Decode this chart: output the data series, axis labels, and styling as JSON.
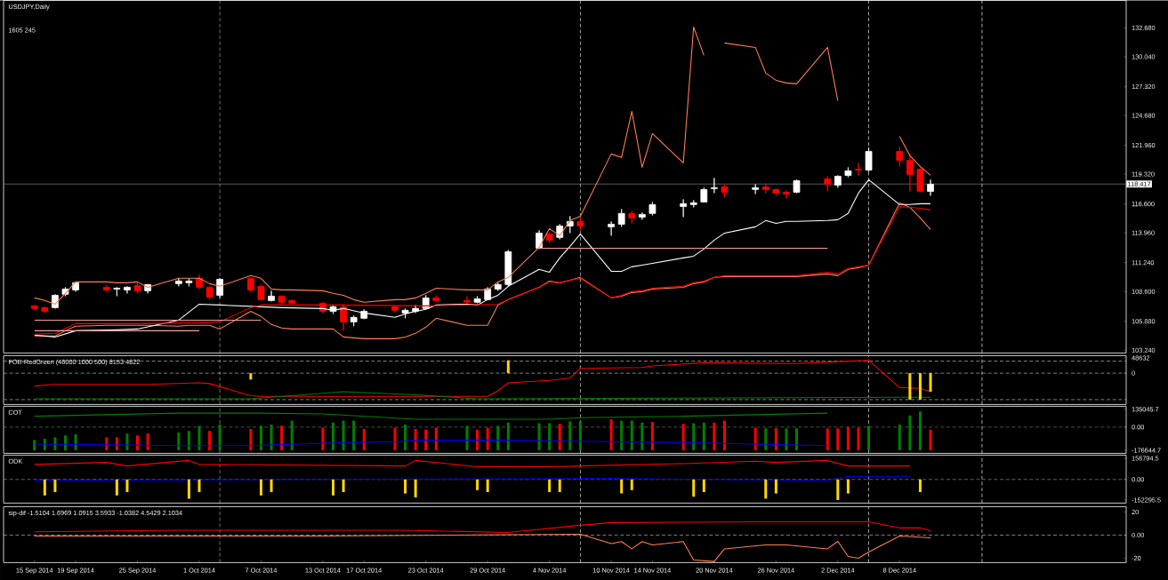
{
  "chart_data": [
    {
      "type": "candlestick",
      "title": "USDJPY,Daily",
      "annotations": [
        "1605 245"
      ],
      "x": [
        "2014-09-15",
        "2014-09-16",
        "2014-09-17",
        "2014-09-18",
        "2014-09-19",
        "2014-09-22",
        "2014-09-23",
        "2014-09-24",
        "2014-09-25",
        "2014-09-26",
        "2014-09-29",
        "2014-09-30",
        "2014-10-01",
        "2014-10-02",
        "2014-10-03",
        "2014-10-06",
        "2014-10-07",
        "2014-10-08",
        "2014-10-09",
        "2014-10-10",
        "2014-10-13",
        "2014-10-14",
        "2014-10-15",
        "2014-10-16",
        "2014-10-17",
        "2014-10-20",
        "2014-10-21",
        "2014-10-22",
        "2014-10-23",
        "2014-10-24",
        "2014-10-27",
        "2014-10-28",
        "2014-10-29",
        "2014-10-30",
        "2014-10-31",
        "2014-11-03",
        "2014-11-04",
        "2014-11-05",
        "2014-11-06",
        "2014-11-07",
        "2014-11-10",
        "2014-11-11",
        "2014-11-12",
        "2014-11-13",
        "2014-11-14",
        "2014-11-17",
        "2014-11-18",
        "2014-11-19",
        "2014-11-20",
        "2014-11-21",
        "2014-11-24",
        "2014-11-25",
        "2014-11-26",
        "2014-11-27",
        "2014-11-28",
        "2014-12-01",
        "2014-12-02",
        "2014-12-03",
        "2014-12-04",
        "2014-12-05",
        "2014-12-08",
        "2014-12-09",
        "2014-12-10",
        "2014-12-11"
      ],
      "xlim": [
        "2014-09-12",
        "2014-12-30"
      ],
      "ylim": [
        102.99,
        135.19
      ],
      "yticks": [
        {
          "value": 103.24,
          "label": "103.240"
        },
        {
          "value": 105.88,
          "label": "105.880"
        },
        {
          "value": 108.6,
          "label": "108.600"
        },
        {
          "value": 111.24,
          "label": "111.240"
        },
        {
          "value": 113.96,
          "label": "113.960"
        },
        {
          "value": 116.6,
          "label": "116.600"
        },
        {
          "value": 119.32,
          "label": "119.320"
        },
        {
          "value": 121.96,
          "label": "121.960"
        },
        {
          "value": 124.68,
          "label": "124.680"
        },
        {
          "value": 127.32,
          "label": "127.320"
        },
        {
          "value": 130.04,
          "label": "130.040"
        },
        {
          "value": 132.68,
          "label": "132.680"
        }
      ],
      "tick_labels": "y",
      "ohlc": [
        [
          107.29,
          107.37,
          106.97,
          107.05
        ],
        [
          107.13,
          107.21,
          106.64,
          106.8
        ],
        [
          107.13,
          108.35,
          107.05,
          108.26
        ],
        [
          108.35,
          108.99,
          108.18,
          108.83
        ],
        [
          108.75,
          109.48,
          108.59,
          109.4
        ],
        [
          108.99,
          109.16,
          108.59,
          108.75
        ],
        [
          108.83,
          108.99,
          108.18,
          108.91
        ],
        [
          108.75,
          109.08,
          108.43,
          108.99
        ],
        [
          109.16,
          109.4,
          108.43,
          108.67
        ],
        [
          108.67,
          109.24,
          108.43,
          109.24
        ],
        [
          109.32,
          109.81,
          109.08,
          109.56
        ],
        [
          109.4,
          109.81,
          109.08,
          109.56
        ],
        [
          109.81,
          110.13,
          108.83,
          108.99
        ],
        [
          108.99,
          109.08,
          107.86,
          108.1
        ],
        [
          108.26,
          109.81,
          108.02,
          109.72
        ],
        [
          109.81,
          109.89,
          108.59,
          108.75
        ],
        [
          109.08,
          109.24,
          107.78,
          107.86
        ],
        [
          107.78,
          108.67,
          107.7,
          108.18
        ],
        [
          108.18,
          108.26,
          107.37,
          107.62
        ],
        [
          107.78,
          107.86,
          107.45,
          107.53
        ],
        [
          107.53,
          107.62,
          106.64,
          106.8
        ],
        [
          106.8,
          107.37,
          106.56,
          107.21
        ],
        [
          107.21,
          107.45,
          105.02,
          105.83
        ],
        [
          105.83,
          106.4,
          105.43,
          106.24
        ],
        [
          106.16,
          106.97,
          106.08,
          106.8
        ],
        [
          107.21,
          107.29,
          106.72,
          106.89
        ],
        [
          106.64,
          107.05,
          106.16,
          106.89
        ],
        [
          106.8,
          107.37,
          106.64,
          107.05
        ],
        [
          107.05,
          108.26,
          106.97,
          108.02
        ],
        [
          108.02,
          108.26,
          107.7,
          107.78
        ],
        [
          107.78,
          108.18,
          107.45,
          107.62
        ],
        [
          107.62,
          108.18,
          107.53,
          107.94
        ],
        [
          107.86,
          108.99,
          107.86,
          108.83
        ],
        [
          108.83,
          109.4,
          108.67,
          109.24
        ],
        [
          109.24,
          112.4,
          109.08,
          112.24
        ],
        [
          112.56,
          114.19,
          112.48,
          113.94
        ],
        [
          113.86,
          114.02,
          113.05,
          113.29
        ],
        [
          113.54,
          114.75,
          113.37,
          114.59
        ],
        [
          114.59,
          115.48,
          113.94,
          115.0
        ],
        [
          115.0,
          115.56,
          114.19,
          114.59
        ],
        [
          114.51,
          115.0,
          113.7,
          114.75
        ],
        [
          114.75,
          116.13,
          114.51,
          115.73
        ],
        [
          115.73,
          115.97,
          114.83,
          115.32
        ],
        [
          115.4,
          115.81,
          115.16,
          115.64
        ],
        [
          115.73,
          116.78,
          115.56,
          116.54
        ],
        [
          116.37,
          117.02,
          115.4,
          116.62
        ],
        [
          116.54,
          116.94,
          116.29,
          116.7
        ],
        [
          116.78,
          118.08,
          116.78,
          117.92
        ],
        [
          118.0,
          118.97,
          117.59,
          118.08
        ],
        [
          118.16,
          118.4,
          117.19,
          117.67
        ],
        [
          117.92,
          118.4,
          117.51,
          118.08
        ],
        [
          118.16,
          118.48,
          117.59,
          117.92
        ],
        [
          117.92,
          118.0,
          117.35,
          117.59
        ],
        [
          117.67,
          117.83,
          117.1,
          117.51
        ],
        [
          117.67,
          118.81,
          117.59,
          118.73
        ],
        [
          118.89,
          119.13,
          117.75,
          118.4
        ],
        [
          118.32,
          119.21,
          118.08,
          119.13
        ],
        [
          119.21,
          119.94,
          119.05,
          119.62
        ],
        [
          119.78,
          120.35,
          119.21,
          119.7
        ],
        [
          119.7,
          121.73,
          119.54,
          121.4
        ],
        [
          121.4,
          121.81,
          120.02,
          120.59
        ],
        [
          120.59,
          121.16,
          117.75,
          119.29
        ],
        [
          119.78,
          119.94,
          117.67,
          117.75
        ],
        [
          117.75,
          118.81,
          117.35,
          118.4
        ]
      ],
      "colors": [
        "#ff0000",
        "#ff0000",
        "#ffffff",
        "#ffffff",
        "#ffffff",
        "#ff0000",
        "#ffffff",
        "#ffffff",
        "#ff0000",
        "#ffffff",
        "#ffffff",
        "#ffffff",
        "#ff0000",
        "#ff0000",
        "#ffffff",
        "#ff0000",
        "#ff0000",
        "#ffffff",
        "#ff0000",
        "#ff0000",
        "#ff0000",
        "#ffffff",
        "#ff0000",
        "#ffffff",
        "#ffffff",
        "#ff0000",
        "#ffffff",
        "#ffffff",
        "#ffffff",
        "#ff0000",
        "#ff0000",
        "#ffffff",
        "#ffffff",
        "#ffffff",
        "#ffffff",
        "#ffffff",
        "#ff0000",
        "#ffffff",
        "#ffffff",
        "#ff0000",
        "#ffffff",
        "#ffffff",
        "#ff0000",
        "#ffffff",
        "#ffffff",
        "#ffffff",
        "#ffffff",
        "#ffffff",
        "#ffffff",
        "#ff0000",
        "#ffffff",
        "#ff0000",
        "#ff0000",
        "#ff0000",
        "#ffffff",
        "#ff0000",
        "#ffffff",
        "#ffffff",
        "#ff0000",
        "#ffffff",
        "#ff0000",
        "#ff0000",
        "#ff0000",
        "#ffffff"
      ],
      "series": [
        {
          "type": "line",
          "color": "#ff7f50",
          "values": [
            108.02,
            107.78,
            107.45,
            108.43,
            109.48,
            109.48,
            109.4,
            109.4,
            109.48,
            108.99,
            109.81,
            109.81,
            109.81,
            109.32,
            109.08,
            110.05,
            109.81,
            108.83,
            108.75,
            108.75,
            108.67,
            108.43,
            108.26,
            107.86,
            107.62,
            107.86,
            107.86,
            108.02,
            108.43,
            108.91,
            108.75,
            108.75,
            108.75,
            109.48,
            109.89,
            112.64,
            114.35,
            113.7,
            115.08,
            115.48,
            121.16,
            120.84,
            125.05,
            119.94,
            123.03,
            120.35,
            132.76,
            130.16,
            null,
            131.3,
            130.89,
            128.54,
            127.89,
            127.65,
            127.57,
            130.89,
            126.03,
            null,
            null,
            null,
            122.78,
            121.0,
            120.02,
            119.21
          ]
        },
        {
          "type": "line",
          "color": "#ff7f50",
          "values": [
            104.54,
            104.54,
            104.54,
            105.02,
            105.43,
            105.51,
            105.51,
            105.51,
            105.51,
            105.51,
            105.43,
            105.51,
            105.51,
            105.51,
            105.18,
            106.8,
            106.32,
            105.59,
            105.27,
            105.18,
            105.18,
            105.18,
            104.45,
            104.37,
            104.29,
            104.29,
            104.45,
            104.78,
            105.35,
            106.16,
            105.51,
            105.51,
            105.51,
            107.37,
            107.86,
            108.99,
            109.56,
            109.4,
            109.64,
            109.89,
            108.02,
            108.18,
            108.51,
            108.59,
            108.83,
            108.99,
            109.32,
            109.48,
            109.89,
            109.97,
            109.97,
            109.97,
            109.97,
            109.97,
            109.97,
            110.21,
            110.05,
            110.62,
            110.78,
            111.02,
            116.7,
            116.29,
            115.32,
            114.27
          ]
        },
        {
          "type": "line",
          "color": "#ffffff",
          "x": [
            "2014-09-15",
            "2014-09-17",
            "2014-09-19",
            "2014-09-23",
            "2014-09-25",
            "2014-09-29",
            "2014-10-01",
            "2014-10-03",
            "2014-10-07",
            "2014-10-09",
            "2014-10-13",
            "2014-10-14",
            "2014-10-15",
            "2014-10-17",
            "2014-10-20",
            "2014-10-21",
            "2014-10-22",
            "2014-10-23",
            "2014-10-24",
            "2014-10-27",
            "2014-10-28",
            "2014-10-29",
            "2014-10-30",
            "2014-10-31",
            "2014-11-03",
            "2014-11-04",
            "2014-11-05",
            "2014-11-06",
            "2014-11-07",
            "2014-11-10",
            "2014-11-11",
            "2014-11-12",
            "2014-11-13",
            "2014-11-14",
            "2014-11-17",
            "2014-11-18",
            "2014-11-19",
            "2014-11-20",
            "2014-11-21",
            "2014-11-24",
            "2014-11-25",
            "2014-11-26",
            "2014-11-27",
            "2014-11-28",
            "2014-12-01",
            "2014-12-02",
            "2014-12-03",
            "2014-12-04",
            "2014-12-05",
            "2014-12-08",
            "2014-12-09",
            "2014-12-10",
            "2014-12-11"
          ],
          "values": [
            104.62,
            104.45,
            105.02,
            105.1,
            105.18,
            105.99,
            107.45,
            107.37,
            107.21,
            107.13,
            107.05,
            106.89,
            107.05,
            106.64,
            106.24,
            106.56,
            106.8,
            106.97,
            107.37,
            107.45,
            107.37,
            107.86,
            108.26,
            109.08,
            110.62,
            110.37,
            111.67,
            112.73,
            113.86,
            110.45,
            110.45,
            110.86,
            111.02,
            111.18,
            111.67,
            111.83,
            112.48,
            113.29,
            113.94,
            114.51,
            115.08,
            114.83,
            115.0,
            115.0,
            115.08,
            115.16,
            115.73,
            117.59,
            118.81,
            116.54,
            116.54,
            116.62,
            116.62
          ]
        },
        {
          "type": "line",
          "color": "#ff0000",
          "x": [
            "2014-09-15",
            "2014-09-17",
            "2014-09-19",
            "2014-09-25",
            "2014-10-01",
            "2014-10-03",
            "2014-10-06",
            "2014-10-07",
            "2014-10-14",
            "2014-10-23",
            "2014-10-30",
            "2014-10-31",
            "2014-11-03",
            "2014-11-04",
            "2014-11-05",
            "2014-11-06",
            "2014-11-07",
            "2014-11-10",
            "2014-11-11",
            "2014-11-12",
            "2014-11-13",
            "2014-11-14",
            "2014-11-17",
            "2014-11-18",
            "2014-11-19",
            "2014-11-20",
            "2014-11-21",
            "2014-11-24",
            "2014-11-25",
            "2014-11-26",
            "2014-11-27",
            "2014-11-28",
            "2014-12-01",
            "2014-12-02",
            "2014-12-03",
            "2014-12-04",
            "2014-12-05",
            "2014-12-08",
            "2014-12-09",
            "2014-12-10",
            "2014-12-11"
          ],
          "values": [
            104.7,
            104.78,
            105.67,
            105.67,
            105.75,
            105.83,
            107.13,
            107.37,
            107.37,
            107.29,
            107.45,
            107.86,
            108.99,
            109.48,
            109.4,
            109.64,
            109.81,
            108.02,
            108.26,
            108.59,
            108.67,
            108.91,
            109.08,
            109.4,
            109.56,
            109.89,
            110.05,
            110.05,
            110.05,
            110.05,
            110.05,
            110.05,
            110.37,
            110.21,
            110.7,
            110.86,
            111.02,
            116.37,
            116.29,
            116.21,
            116.05
          ]
        },
        {
          "type": "line",
          "color": "#f4a0a0",
          "x": [
            "2014-09-15",
            "2014-10-07"
          ],
          "values": [
            105.99,
            105.99
          ]
        },
        {
          "type": "line",
          "color": "#f4a0a0",
          "x": [
            "2014-09-15",
            "2014-10-01"
          ],
          "values": [
            105.02,
            105.02
          ]
        },
        {
          "type": "line",
          "color": "#f4a0a0",
          "x": [
            "2014-11-03",
            "2014-12-01"
          ],
          "values": [
            112.56,
            112.56
          ]
        }
      ],
      "ref_lines": [
        {
          "axis": "y",
          "value": 118.417,
          "label": "118.417",
          "color": "#778899",
          "line_style": "solid"
        },
        {
          "axis": "x",
          "value": "2014-10-03",
          "color": "#ffffff",
          "line_style": "dashed"
        },
        {
          "axis": "x",
          "value": "2014-11-07",
          "color": "#ffffff",
          "line_style": "dashed"
        },
        {
          "axis": "x",
          "value": "2014-12-05",
          "color": "#ffffff",
          "line_style": "dashed"
        },
        {
          "axis": "x",
          "value": "2014-12-16",
          "color": "#ffffff",
          "line_style": "dashed"
        }
      ]
    },
    {
      "type": "line",
      "title": "FOB-RedGreen (46000 1000 500) 8153 4822",
      "xlim": [
        "2014-09-12",
        "2014-12-30"
      ],
      "ylim": [
        -100000,
        56000
      ],
      "yticks": [
        48632,
        0
      ],
      "tick_labels": "y",
      "series": [
        {
          "type": "line",
          "color": "#ff0000",
          "x": [
            "2014-09-15",
            "2014-09-17",
            "2014-09-26",
            "2014-10-01",
            "2014-10-02",
            "2014-10-06",
            "2014-10-07",
            "2014-10-29",
            "2014-10-30",
            "2014-10-31",
            "2014-11-04",
            "2014-11-06",
            "2014-11-07",
            "2014-11-13",
            "2014-11-14",
            "2014-11-19",
            "2014-11-28",
            "2014-12-03",
            "2014-12-05",
            "2014-12-08",
            "2014-12-10",
            "2014-12-11"
          ],
          "values": [
            -41000,
            -35800,
            -35800,
            -30700,
            -33300,
            -71700,
            -74200,
            -74200,
            -56300,
            -30700,
            -23000,
            -15400,
            15400,
            17900,
            23000,
            33300,
            30700,
            38400,
            41000,
            -46100,
            -48600,
            -58900
          ]
        },
        {
          "type": "line",
          "color": "#008000",
          "x": [
            "2014-09-15",
            "2014-10-06",
            "2014-10-08",
            "2014-10-15",
            "2014-10-22",
            "2014-10-28",
            "2014-12-11"
          ],
          "values": [
            -81900,
            -81900,
            -76800,
            -58900,
            -69100,
            -81900,
            -76800
          ]
        },
        {
          "type": "bar",
          "color": "#ffd700",
          "x": [
            "2014-10-06",
            "2014-10-31",
            "2014-12-09",
            "2014-12-10",
            "2014-12-11"
          ],
          "values": [
            -20500,
            41000,
            -84500,
            -84500,
            -58900
          ]
        }
      ],
      "ref_lines": [
        {
          "axis": "y",
          "value": 38400,
          "color": "#c0c0c0",
          "line_style": "dashed"
        },
        {
          "axis": "y",
          "value": 0,
          "color": "#c0c0c0",
          "line_style": "dashed"
        },
        {
          "axis": "y",
          "value": -84500,
          "color": "#c0c0c0",
          "line_style": "dashed"
        },
        {
          "axis": "x",
          "value": "2014-10-03",
          "color": "#ffffff",
          "line_style": "dashed"
        },
        {
          "axis": "x",
          "value": "2014-11-07",
          "color": "#ffffff",
          "line_style": "dashed"
        },
        {
          "axis": "x",
          "value": "2014-12-05",
          "color": "#ffffff",
          "line_style": "dashed"
        },
        {
          "axis": "x",
          "value": "2014-12-16",
          "color": "#ffffff",
          "line_style": "dashed"
        }
      ]
    },
    {
      "type": "line",
      "title": "COT",
      "xlim": [
        "2014-09-12",
        "2014-12-30"
      ],
      "ylim": [
        -200000,
        158000
      ],
      "yticks": [
        135045.7,
        {
          "value": 0,
          "label": "0.00"
        },
        -176644.7
      ],
      "tick_labels": "y",
      "x": [
        "2014-09-15",
        "2014-09-16",
        "2014-09-17",
        "2014-09-18",
        "2014-09-19",
        "2014-09-22",
        "2014-09-23",
        "2014-09-24",
        "2014-09-25",
        "2014-09-26",
        "2014-09-29",
        "2014-09-30",
        "2014-10-01",
        "2014-10-02",
        "2014-10-03",
        "2014-10-06",
        "2014-10-07",
        "2014-10-08",
        "2014-10-09",
        "2014-10-10",
        "2014-10-13",
        "2014-10-14",
        "2014-10-15",
        "2014-10-16",
        "2014-10-17",
        "2014-10-20",
        "2014-10-21",
        "2014-10-22",
        "2014-10-23",
        "2014-10-24",
        "2014-10-27",
        "2014-10-28",
        "2014-10-29",
        "2014-10-30",
        "2014-10-31",
        "2014-11-03",
        "2014-11-04",
        "2014-11-05",
        "2014-11-06",
        "2014-11-07",
        "2014-11-10",
        "2014-11-11",
        "2014-11-12",
        "2014-11-13",
        "2014-11-14",
        "2014-11-17",
        "2014-11-18",
        "2014-11-19",
        "2014-11-20",
        "2014-11-21",
        "2014-11-24",
        "2014-11-25",
        "2014-11-26",
        "2014-11-27",
        "2014-11-28",
        "2014-12-01",
        "2014-12-02",
        "2014-12-03",
        "2014-12-04",
        "2014-12-05",
        "2014-12-08",
        "2014-12-09",
        "2014-12-10",
        "2014-12-11"
      ],
      "series": [
        {
          "type": "bar",
          "values": [
            78200,
            88200,
            98200,
            112900,
            122300,
            98200,
            98200,
            127600,
            112900,
            127600,
            137000,
            147000,
            186400,
            147000,
            195800,
            161700,
            186400,
            195800,
            186400,
            225200,
            171700,
            210500,
            225200,
            225200,
            161700,
            171700,
            195800,
            161700,
            157000,
            171700,
            186400,
            157000,
            171700,
            186400,
            210500,
            205800,
            205800,
            201100,
            220500,
            220500,
            235200,
            225200,
            225200,
            210500,
            215800,
            201100,
            205800,
            210500,
            210500,
            225200,
            171700,
            166400,
            166400,
            166400,
            166400,
            166400,
            166400,
            176400,
            171700,
            186400,
            195800,
            264600,
            294000,
            157000
          ],
          "base": [
            -176644.7,
            -176644.7,
            -176644.7,
            -176644.7,
            -176644.7,
            -176644.7,
            -176644.7,
            -176644.7,
            -176644.7,
            -176644.7,
            -176644.7,
            -176644.7,
            -176644.7,
            -176644.7,
            -176644.7,
            -176644.7,
            -176644.7,
            -176644.7,
            -176644.7,
            -176644.7,
            -176644.7,
            -176644.7,
            -176644.7,
            -176644.7,
            -176644.7,
            -176644.7,
            -176644.7,
            -176644.7,
            -176644.7,
            -176644.7,
            -176644.7,
            -176644.7,
            -176644.7,
            -176644.7,
            -176644.7,
            -176644.7,
            -176644.7,
            -176644.7,
            -176644.7,
            -176644.7,
            -176644.7,
            -176644.7,
            -176644.7,
            -176644.7,
            -176644.7,
            -176644.7,
            -176644.7,
            -176644.7,
            -176644.7,
            -176644.7,
            -176644.7,
            -176644.7,
            -176644.7,
            -176644.7,
            -176644.7,
            -176644.7,
            -176644.7,
            -176644.7,
            -176644.7,
            -176644.7,
            -176644.7,
            -176644.7,
            -176644.7,
            -176644.7
          ],
          "colors": [
            "#008000",
            "#008000",
            "#008000",
            "#008000",
            "#008000",
            "#ff0000",
            "#ff0000",
            "#008000",
            "#ff0000",
            "#ff0000",
            "#008000",
            "#008000",
            "#008000",
            "#ff0000",
            "#008000",
            "#ff0000",
            "#008000",
            "#008000",
            "#ff0000",
            "#008000",
            "#ff0000",
            "#008000",
            "#008000",
            "#008000",
            "#ff0000",
            "#ff0000",
            "#008000",
            "#ff0000",
            "#ff0000",
            "#ff0000",
            "#008000",
            "#ff0000",
            "#ff0000",
            "#008000",
            "#008000",
            "#008000",
            "#008000",
            "#ff0000",
            "#008000",
            "#008000",
            "#ff0000",
            "#008000",
            "#008000",
            "#008000",
            "#ff0000",
            "#ff0000",
            "#008000",
            "#008000",
            "#ff0000",
            "#ff0000",
            "#ff0000",
            "#008000",
            "#ff0000",
            "#008000",
            "#008000",
            "#ff0000",
            "#ff0000",
            "#ff0000",
            "#ff0000",
            "#008000",
            "#008000",
            "#008000",
            "#008000",
            "#ff0000"
          ]
        },
        {
          "type": "line",
          "color": "#008000",
          "x": [
            "2014-09-15",
            "2014-09-29",
            "2014-10-07",
            "2014-10-13",
            "2014-10-22",
            "2014-11-04",
            "2014-11-07",
            "2014-11-17",
            "2014-11-24",
            "2014-12-01"
          ],
          "values": [
            82300,
            105900,
            105900,
            100000,
            58800,
            58800,
            70600,
            82300,
            94100,
            105900
          ]
        },
        {
          "type": "line",
          "color": "#0000ff",
          "x": [
            "2014-09-15",
            "2014-09-22",
            "2014-09-29",
            "2014-10-06",
            "2014-10-13",
            "2014-10-20",
            "2014-10-23",
            "2014-10-30",
            "2014-11-04",
            "2014-11-10",
            "2014-11-17",
            "2014-11-24",
            "2014-12-01"
          ],
          "values": [
            -129400,
            -135300,
            -141100,
            -141100,
            -123500,
            -111700,
            -100000,
            -100000,
            -105900,
            -111700,
            -117600,
            -129400,
            -141100
          ]
        }
      ],
      "ref_lines": [
        {
          "axis": "y",
          "value": 0,
          "color": "#c0c0c0",
          "line_style": "dashed"
        },
        {
          "axis": "x",
          "value": "2014-10-03",
          "color": "#ffffff",
          "line_style": "dashed"
        },
        {
          "axis": "x",
          "value": "2014-11-07",
          "color": "#ffffff",
          "line_style": "dashed"
        },
        {
          "axis": "x",
          "value": "2014-12-05",
          "color": "#ffffff",
          "line_style": "dashed"
        },
        {
          "axis": "x",
          "value": "2014-12-16",
          "color": "#ffffff",
          "line_style": "dashed"
        }
      ]
    },
    {
      "type": "line",
      "title": "ODK",
      "xlim": [
        "2014-09-12",
        "2014-12-30"
      ],
      "ylim": [
        -175000,
        180000
      ],
      "yticks": [
        156794.5,
        {
          "value": 0,
          "label": "0.00"
        },
        -152295.5
      ],
      "tick_labels": "y",
      "series": [
        {
          "type": "line",
          "color": "#ff0000",
          "x": [
            "2014-09-15",
            "2014-09-22",
            "2014-09-24",
            "2014-09-30",
            "2014-10-01",
            "2014-10-21",
            "2014-10-22",
            "2014-10-28",
            "2014-11-04",
            "2014-11-07",
            "2014-11-17",
            "2014-11-24",
            "2014-11-26",
            "2014-12-01",
            "2014-12-03",
            "2014-12-09"
          ],
          "values": [
            111300,
            125900,
            99600,
            140600,
            111300,
            99600,
            140600,
            93700,
            93700,
            99600,
            117100,
            134700,
            125900,
            140600,
            99600,
            99600
          ]
        },
        {
          "type": "line",
          "color": "#0000ff",
          "x": [
            "2014-09-15",
            "2014-10-13",
            "2014-11-10",
            "2014-12-01",
            "2014-12-03",
            "2014-12-09"
          ],
          "values": [
            -5900,
            0,
            5900,
            -5900,
            23400,
            23400
          ]
        },
        {
          "type": "bar",
          "color": "#ffd700",
          "x": [
            "2014-09-16",
            "2014-09-17",
            "2014-09-23",
            "2014-09-24",
            "2014-09-30",
            "2014-10-01",
            "2014-10-07",
            "2014-10-08",
            "2014-10-14",
            "2014-10-15",
            "2014-10-21",
            "2014-10-22",
            "2014-10-28",
            "2014-10-29",
            "2014-11-04",
            "2014-11-05",
            "2014-11-11",
            "2014-11-12",
            "2014-11-18",
            "2014-11-19",
            "2014-11-25",
            "2014-11-26",
            "2014-12-02",
            "2014-12-03",
            "2014-12-10"
          ],
          "values": [
            -118300,
            -93700,
            -118300,
            -93700,
            -142300,
            -93700,
            -118300,
            -93700,
            -118300,
            -93700,
            -103700,
            -133000,
            -79100,
            -93700,
            -93700,
            -93700,
            -103700,
            -79100,
            -127700,
            -93700,
            -142300,
            -103700,
            -152300,
            -103700,
            -93700
          ]
        }
      ],
      "ref_lines": [
        {
          "axis": "y",
          "value": 0,
          "color": "#c0c0c0",
          "line_style": "dashed"
        },
        {
          "axis": "x",
          "value": "2014-10-03",
          "color": "#ffffff",
          "line_style": "dashed"
        },
        {
          "axis": "x",
          "value": "2014-11-07",
          "color": "#ffffff",
          "line_style": "dashed"
        },
        {
          "axis": "x",
          "value": "2014-12-05",
          "color": "#ffffff",
          "line_style": "dashed"
        },
        {
          "axis": "x",
          "value": "2014-12-16",
          "color": "#ffffff",
          "line_style": "dashed"
        }
      ]
    },
    {
      "type": "line",
      "title": "sip-dif -1.5104 1.6969 1.0915 3.5933 -1.0382 4.5429 2.1034",
      "xlim": [
        "2014-09-12",
        "2014-12-30"
      ],
      "ylim": [
        -23.8,
        24.6
      ],
      "yticks": [
        20,
        {
          "value": 0,
          "label": "0.00"
        },
        -20
      ],
      "xticks": [
        {
          "value": "2014-09-15",
          "label": "15 Sep 2014"
        },
        {
          "value": "2014-09-19",
          "label": "19 Sep 2014"
        },
        {
          "value": "2014-09-25",
          "label": "25 Sep 2014"
        },
        {
          "value": "2014-10-01",
          "label": "1 Oct 2014"
        },
        {
          "value": "2014-10-07",
          "label": "7 Oct 2014"
        },
        {
          "value": "2014-10-13",
          "label": "13 Oct 2014"
        },
        {
          "value": "2014-10-17",
          "label": "17 Oct 2014"
        },
        {
          "value": "2014-10-23",
          "label": "23 Oct 2014"
        },
        {
          "value": "2014-10-29",
          "label": "29 Oct 2014"
        },
        {
          "value": "2014-11-04",
          "label": "4 Nov 2014"
        },
        {
          "value": "2014-11-10",
          "label": "10 Nov 2014"
        },
        {
          "value": "2014-11-14",
          "label": "14 Nov 2014"
        },
        {
          "value": "2014-11-20",
          "label": "20 Nov 2014"
        },
        {
          "value": "2014-11-26",
          "label": "26 Nov 2014"
        },
        {
          "value": "2014-12-02",
          "label": "2 Dec 2014"
        },
        {
          "value": "2014-12-08",
          "label": "8 Dec 2014"
        }
      ],
      "series": [
        {
          "type": "line",
          "color": "#ff0000",
          "x": [
            "2014-09-15",
            "2014-09-29",
            "2014-10-21",
            "2014-10-31",
            "2014-11-07",
            "2014-11-10",
            "2014-11-24",
            "2014-12-05",
            "2014-12-08",
            "2014-12-10",
            "2014-12-11"
          ],
          "values": [
            2.8,
            4.1,
            4.1,
            2.3,
            8.5,
            10.8,
            11.5,
            11.5,
            6.2,
            6.2,
            3.8
          ]
        },
        {
          "type": "line",
          "color": "#ff7f50",
          "x": [
            "2014-09-15",
            "2014-10-13",
            "2014-11-07",
            "2014-11-10",
            "2014-11-11",
            "2014-11-12",
            "2014-11-13",
            "2014-11-14",
            "2014-11-17",
            "2014-11-18",
            "2014-11-20",
            "2014-11-21",
            "2014-11-25",
            "2014-11-27",
            "2014-12-01",
            "2014-12-02",
            "2014-12-03",
            "2014-12-04",
            "2014-12-05",
            "2014-12-08",
            "2014-12-11"
          ],
          "values": [
            -0.8,
            -0.8,
            0.7,
            -7.4,
            -5.6,
            -11.9,
            -5.6,
            -8.5,
            -5.6,
            -21.5,
            -22.8,
            -11.9,
            -8.5,
            -8.5,
            -11.9,
            -5.4,
            -18.5,
            -20,
            -14.6,
            -0.8,
            -2.3
          ]
        }
      ],
      "ref_lines": [
        {
          "axis": "y",
          "value": 0,
          "color": "#c0c0c0",
          "line_style": "dashed"
        },
        {
          "axis": "x",
          "value": "2014-10-03",
          "color": "#ffffff",
          "line_style": "dashed"
        },
        {
          "axis": "x",
          "value": "2014-11-07",
          "color": "#ffffff",
          "line_style": "dashed"
        },
        {
          "axis": "x",
          "value": "2014-12-05",
          "color": "#ffffff",
          "line_style": "dashed"
        },
        {
          "axis": "x",
          "value": "2014-12-16",
          "color": "#ffffff",
          "line_style": "dashed"
        }
      ]
    }
  ]
}
